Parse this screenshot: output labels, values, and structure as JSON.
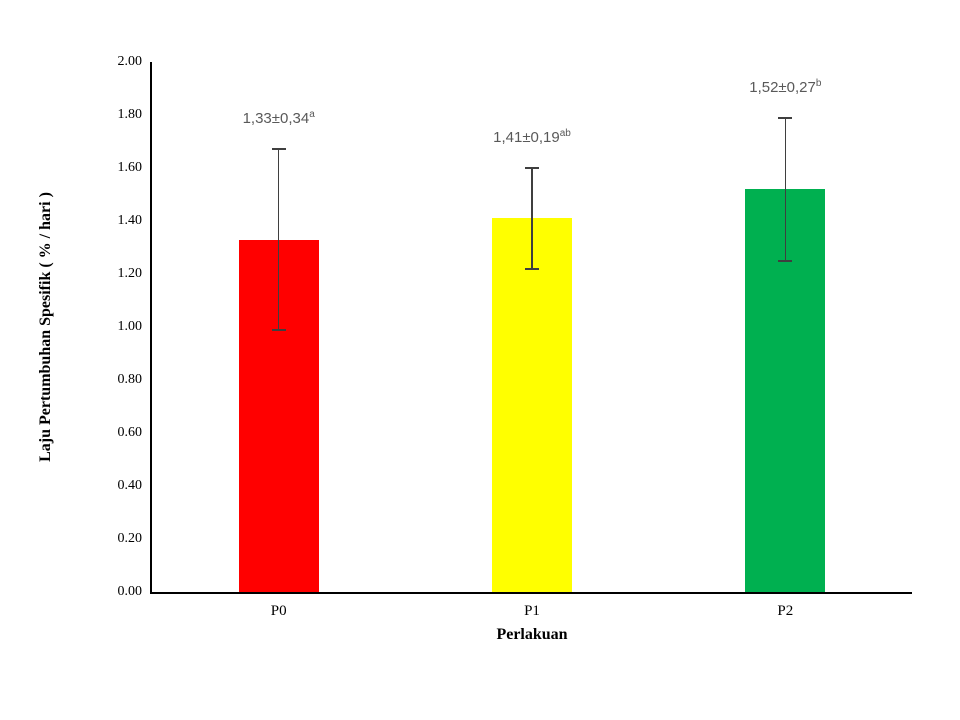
{
  "chart_data": {
    "type": "bar",
    "title": "",
    "xlabel": "Perlakuan",
    "ylabel": "Laju Pertumbuhan Spesifik ( % / hari )",
    "categories": [
      "P0",
      "P1",
      "P2"
    ],
    "values": [
      1.33,
      1.41,
      1.52
    ],
    "errors": [
      0.34,
      0.19,
      0.27
    ],
    "bar_colors": [
      "#FF0000",
      "#FFFF00",
      "#00B050"
    ],
    "data_labels": [
      {
        "text": "1,33±0,34",
        "sup": "a"
      },
      {
        "text": "1,41±0,19",
        "sup": "ab"
      },
      {
        "text": "1,52±0,27",
        "sup": "b"
      }
    ],
    "ylim": [
      0,
      2
    ],
    "ytick_step": 0.2,
    "ytick_labels": [
      "0.00",
      "0.20",
      "0.40",
      "0.60",
      "0.80",
      "1.00",
      "1.20",
      "1.40",
      "1.60",
      "1.80",
      "2.00"
    ],
    "grid": "off",
    "legend": "none",
    "axis_color": "#000000",
    "error_bar_color": "#3f3f3f",
    "data_label_color": "#595959"
  }
}
